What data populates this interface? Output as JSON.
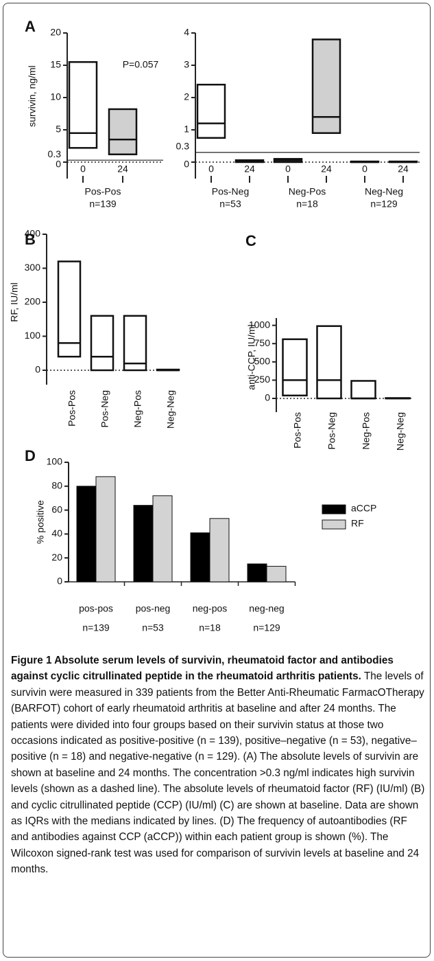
{
  "chart_data": [
    {
      "type": "box",
      "panel": "A",
      "ylabel": "survivin, ng/ml",
      "ylim": [
        0,
        20
      ],
      "yticks": [
        0,
        5,
        10,
        15,
        20
      ],
      "reference_line": 0.3,
      "categories": [
        "0",
        "24"
      ],
      "groups": [
        "Pos-Pos"
      ],
      "group_n": [
        "n=139"
      ],
      "q1": [
        2.2,
        1.2
      ],
      "median": [
        4.5,
        3.5
      ],
      "q3": [
        15.5,
        8.2
      ],
      "colors": [
        "#ffffff",
        "#d0d0d0"
      ],
      "annotation": "P=0.057"
    },
    {
      "type": "box",
      "ylim": [
        0,
        4
      ],
      "yticks": [
        0,
        1,
        2,
        3,
        4
      ],
      "reference_line": 0.3,
      "categories": [
        "0",
        "24",
        "0",
        "24",
        "0",
        "24"
      ],
      "groups": [
        "Pos-Neg",
        "Neg-Pos",
        "Neg-Neg"
      ],
      "group_n": [
        "n=53",
        "n=18",
        "n=129"
      ],
      "q1": [
        0.75,
        0,
        0,
        0.9,
        0,
        0
      ],
      "median": [
        1.2,
        0.03,
        0.05,
        1.4,
        0,
        0
      ],
      "q3": [
        2.4,
        0.06,
        0.1,
        3.8,
        0.02,
        0.02
      ],
      "colors": [
        "#ffffff",
        "#d0d0d0",
        "#ffffff",
        "#d0d0d0",
        "#ffffff",
        "#d0d0d0"
      ]
    },
    {
      "type": "box",
      "panel": "B",
      "ylabel": "RF, IU/ml",
      "ylim": [
        0,
        400
      ],
      "yticks": [
        0,
        100,
        200,
        300,
        400
      ],
      "categories": [
        "Pos-Pos",
        "Pos-Neg",
        "Neg-Pos",
        "Neg-Neg"
      ],
      "q1": [
        40,
        0,
        0,
        0
      ],
      "median": [
        80,
        40,
        20,
        0
      ],
      "q3": [
        320,
        160,
        160,
        2
      ],
      "color": "#ffffff"
    },
    {
      "type": "box",
      "panel": "C",
      "ylabel": "anti-CCP, IU/ml",
      "ylim": [
        0,
        1100
      ],
      "yticks": [
        0,
        250,
        500,
        750,
        1000
      ],
      "categories": [
        "Pos-Pos",
        "Pos-Neg",
        "Neg-Pos",
        "Neg-Neg"
      ],
      "q1": [
        40,
        0,
        0,
        0
      ],
      "median": [
        250,
        250,
        0,
        0
      ],
      "q3": [
        810,
        990,
        240,
        5
      ],
      "color": "#ffffff"
    },
    {
      "type": "bar",
      "panel": "D",
      "ylabel": "% positive",
      "ylim": [
        0,
        100
      ],
      "yticks": [
        0,
        20,
        40,
        60,
        80,
        100
      ],
      "categories": [
        "pos-pos",
        "pos-neg",
        "neg-pos",
        "neg-neg"
      ],
      "category_n": [
        "n=139",
        "n=53",
        "n=18",
        "n=129"
      ],
      "series": [
        {
          "name": "aCCP",
          "color": "#000000",
          "values": [
            80,
            64,
            41,
            15
          ]
        },
        {
          "name": "RF",
          "color": "#d3d3d3",
          "values": [
            88,
            72,
            53,
            13
          ]
        }
      ],
      "legend": "upper right"
    }
  ],
  "caption": {
    "title": "Figure 1 Absolute serum levels of survivin, rheumatoid factor and antibodies against cyclic citrullinated peptide in the rheumatoid arthritis patients.",
    "text": "The levels of survivin were measured in 339 patients from the Better Anti-Rheumatic FarmacOTherapy (BARFOT) cohort of early rheumatoid arthritis at baseline and after 24 months. The patients were divided into four groups based on their survivin status at those two occasions indicated as positive-positive (n = 139), positive–negative (n = 53), negative–positive (n = 18) and negative-negative (n = 129). (A) The absolute levels of survivin are shown at baseline and 24 months. The concentration >0.3 ng/ml indicates high survivin levels (shown as a dashed line). The absolute levels of rheumatoid factor (RF) (IU/ml) (B) and cyclic citrullinated peptide (CCP) (IU/ml) (C) are shown at baseline. Data are shown as IQRs with the medians indicated by lines. (D) The frequency of autoantibodies (RF and antibodies against CCP (aCCP)) within each patient group is shown (%). The Wilcoxon signed-rank test was used for comparison of survivin levels at baseline and 24 months."
  }
}
